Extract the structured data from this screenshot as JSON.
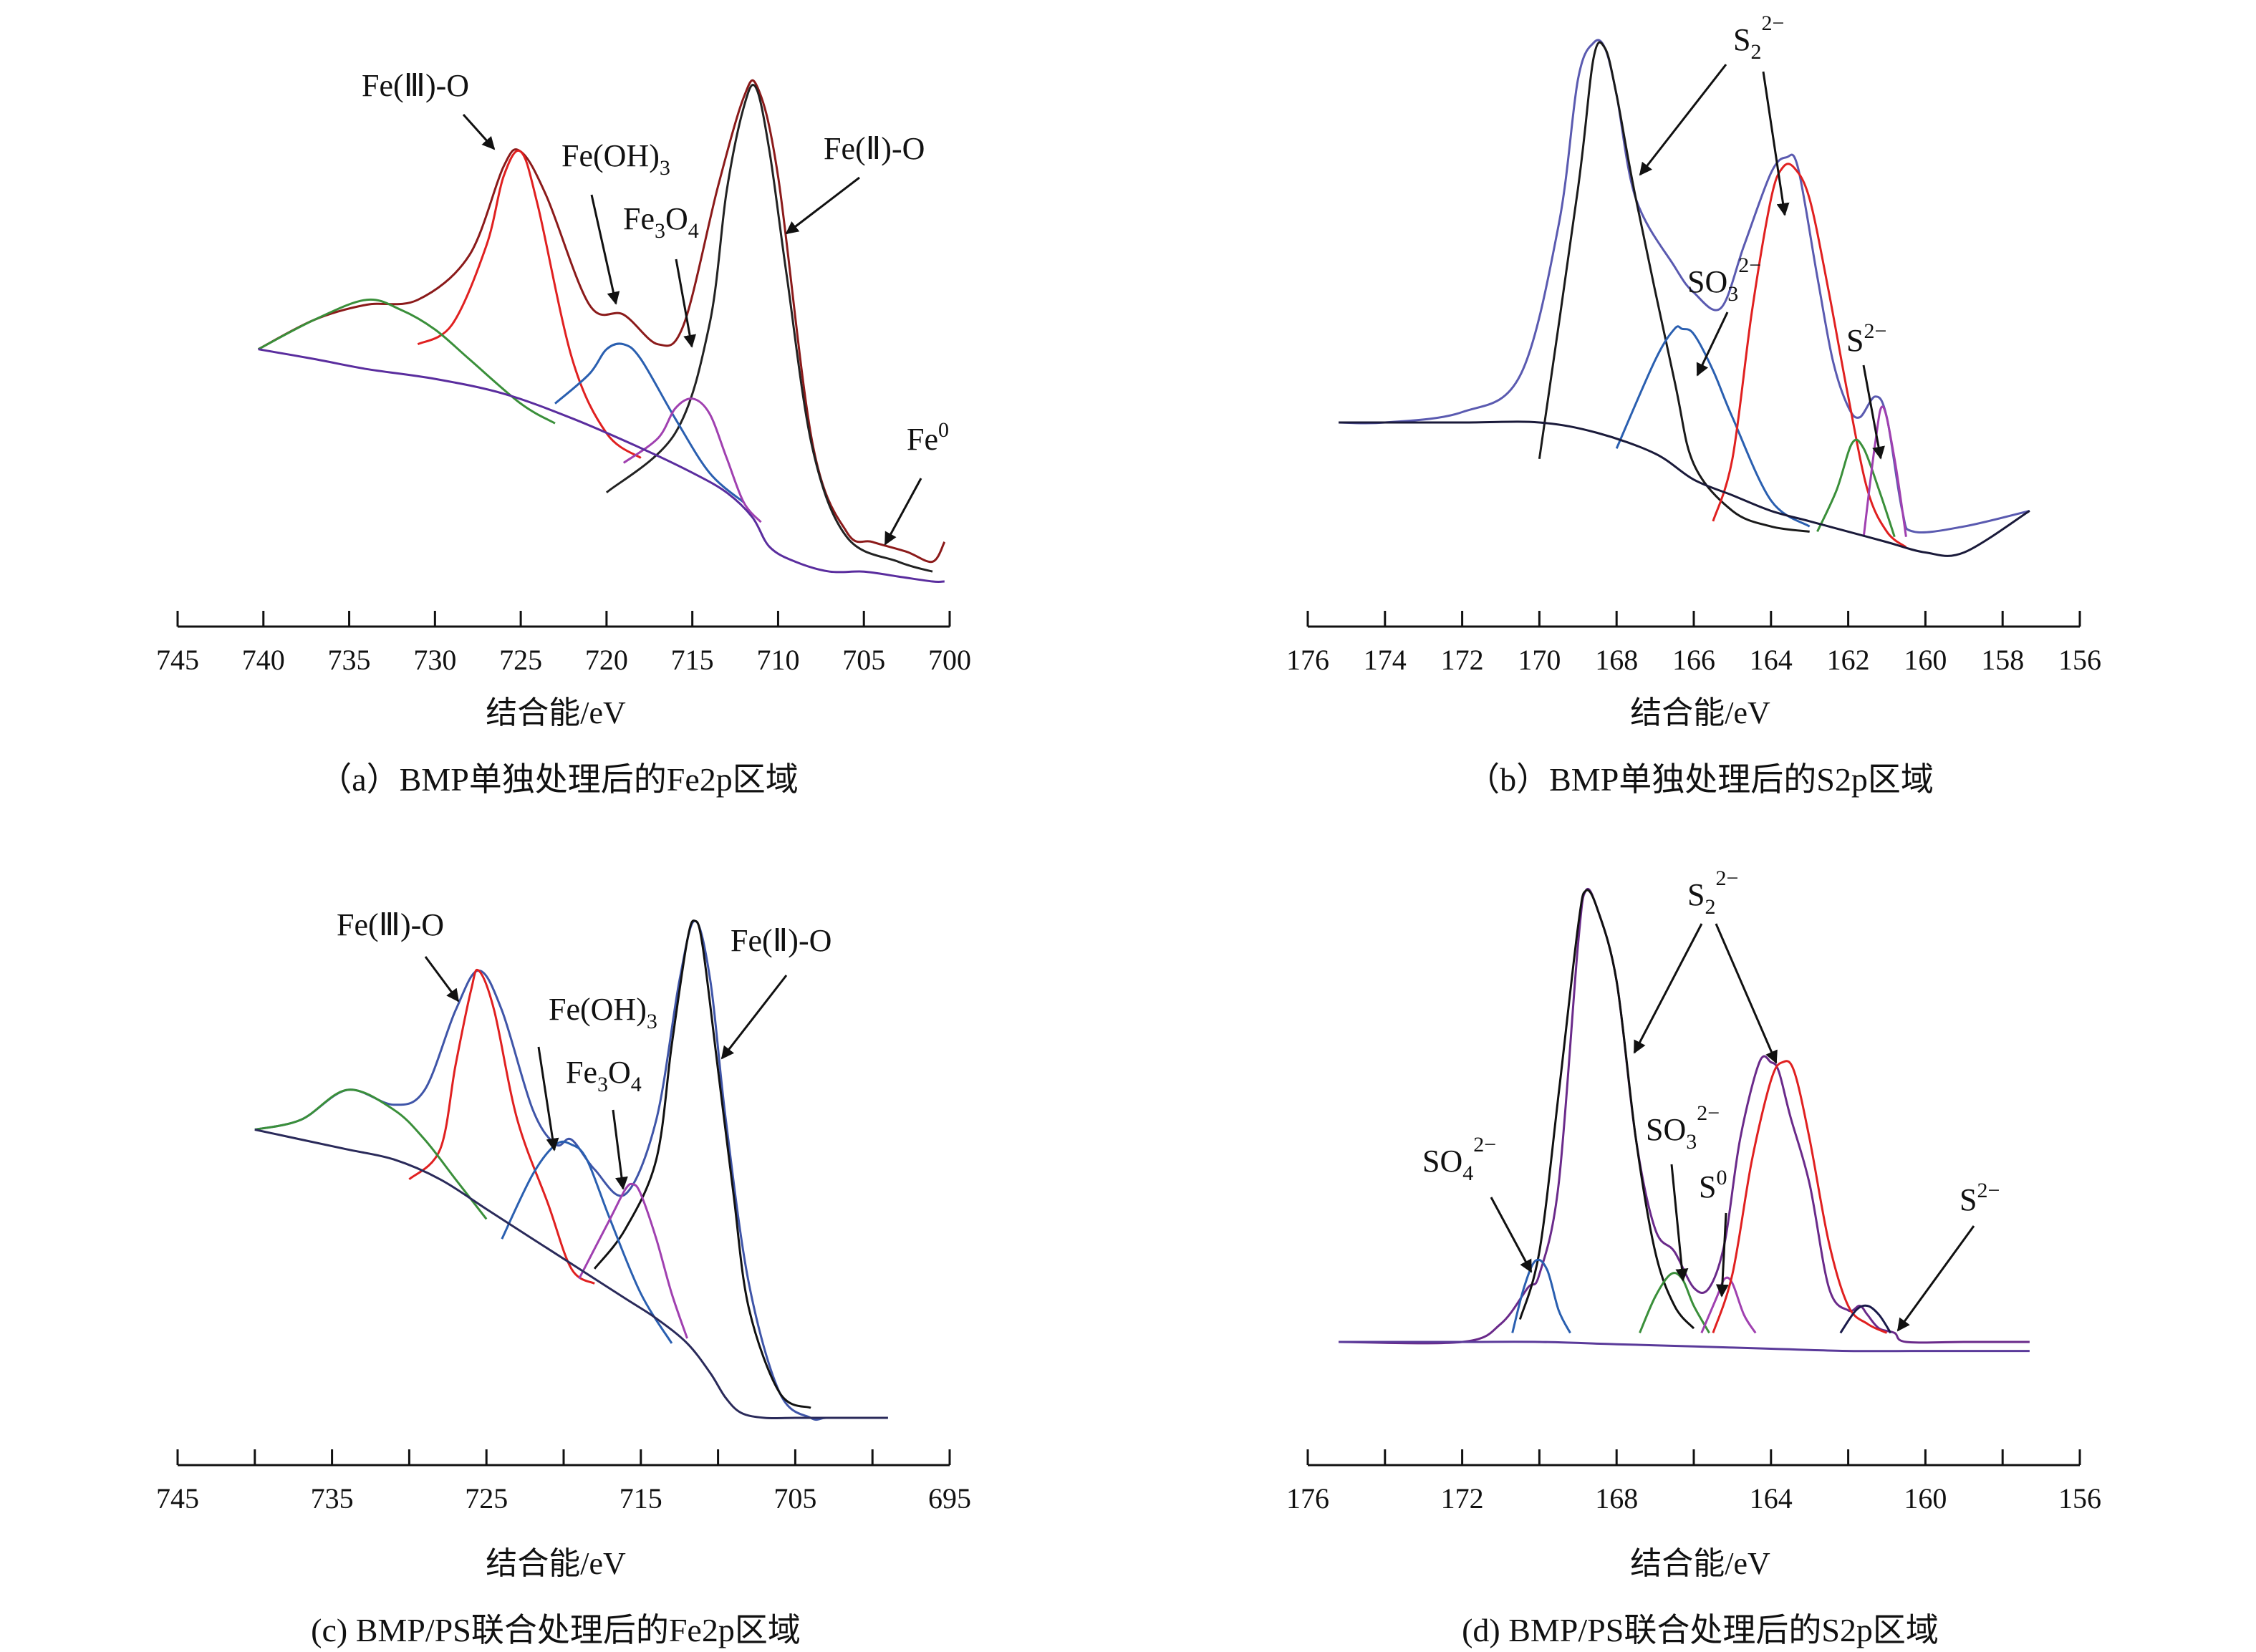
{
  "chart_data": [
    {
      "id": "a",
      "type": "line",
      "caption": "（a）BMP单独处理后的Fe2p区域",
      "xlabel": "结合能/eV",
      "ticks": [
        745,
        740,
        735,
        730,
        725,
        720,
        715,
        710,
        705,
        700
      ],
      "xlim": [
        745,
        700
      ],
      "series": [
        {
          "color": "#8b1a1a",
          "x": [
            740.3,
            737,
            734,
            731,
            728,
            726,
            725,
            723.5,
            721,
            719,
            717,
            715.5,
            713.5,
            712,
            711.2,
            710,
            708,
            706,
            704.5,
            702.5,
            701,
            700.3
          ],
          "y": [
            0.47,
            0.53,
            0.56,
            0.57,
            0.66,
            0.84,
            0.87,
            0.78,
            0.56,
            0.54,
            0.48,
            0.52,
            0.8,
            0.98,
            1.0,
            0.82,
            0.28,
            0.1,
            0.08,
            0.06,
            0.04,
            0.08
          ]
        },
        {
          "color": "#222222",
          "x": [
            720,
            716,
            714,
            713,
            712,
            711.3,
            710.5,
            709.5,
            708,
            706,
            703,
            701
          ],
          "y": [
            0.18,
            0.3,
            0.52,
            0.79,
            0.96,
            1.0,
            0.87,
            0.62,
            0.27,
            0.09,
            0.04,
            0.02
          ]
        },
        {
          "color": "#e02020",
          "x": [
            731,
            729,
            727,
            726,
            725,
            724,
            722,
            720,
            718
          ],
          "y": [
            0.48,
            0.52,
            0.68,
            0.82,
            0.87,
            0.76,
            0.45,
            0.3,
            0.25
          ]
        },
        {
          "color": "#2a5fb0",
          "x": [
            723,
            721,
            720,
            719,
            718,
            716,
            714,
            712
          ],
          "y": [
            0.36,
            0.42,
            0.47,
            0.48,
            0.45,
            0.33,
            0.22,
            0.16
          ]
        },
        {
          "color": "#a040b0",
          "x": [
            719,
            717,
            716,
            715,
            714,
            713,
            712,
            711
          ],
          "y": [
            0.24,
            0.29,
            0.35,
            0.37,
            0.34,
            0.25,
            0.16,
            0.12
          ]
        },
        {
          "color": "#3a8f3a",
          "x": [
            740.3,
            737,
            734,
            732,
            730,
            728,
            725,
            723
          ],
          "y": [
            0.47,
            0.53,
            0.57,
            0.55,
            0.51,
            0.45,
            0.36,
            0.32
          ]
        },
        {
          "color": "#5a2d9e",
          "x": [
            740.3,
            737,
            734,
            730,
            726,
            722,
            718,
            715,
            713,
            711.5,
            710.5,
            709,
            707,
            705,
            703,
            701,
            700.3
          ],
          "y": [
            0.47,
            0.45,
            0.43,
            0.41,
            0.38,
            0.33,
            0.27,
            0.22,
            0.18,
            0.13,
            0.07,
            0.04,
            0.02,
            0.02,
            0.01,
            0.0,
            0.0
          ]
        }
      ],
      "annotations": [
        {
          "text": "Fe(Ⅲ)-O",
          "sub": "",
          "tail": ""
        },
        {
          "text": "Fe(OH)",
          "sub": "3",
          "tail": ""
        },
        {
          "text": "Fe",
          "sub": "3",
          "tail": "O",
          "sub2": "4"
        },
        {
          "text": "Fe(Ⅱ)-O",
          "sub": "",
          "tail": ""
        },
        {
          "text": "Fe",
          "sup": "0"
        }
      ]
    },
    {
      "id": "b",
      "type": "line",
      "caption": "（b）BMP单独处理后的S2p区域",
      "xlabel": "结合能/eV",
      "ticks": [
        176,
        174,
        172,
        170,
        168,
        166,
        164,
        162,
        160,
        158,
        156
      ],
      "xlim": [
        176,
        156
      ],
      "series": [
        {
          "color": "#5a5ab0",
          "x": [
            175.2,
            174,
            172,
            170.5,
            169.5,
            169,
            168.6,
            168.3,
            168,
            167.5,
            166.5,
            166,
            165.3,
            164.7,
            164,
            163.6,
            163.3,
            162.8,
            162.4,
            162,
            161.7,
            161.3,
            161,
            160.6,
            160.3,
            159,
            157.3
          ],
          "y": [
            0.27,
            0.27,
            0.29,
            0.36,
            0.65,
            0.93,
            1.0,
            0.99,
            0.9,
            0.7,
            0.57,
            0.52,
            0.49,
            0.61,
            0.75,
            0.78,
            0.76,
            0.55,
            0.39,
            0.3,
            0.28,
            0.32,
            0.28,
            0.1,
            0.06,
            0.07,
            0.1
          ]
        },
        {
          "color": "#1a1a1a",
          "x": [
            170,
            169,
            168.6,
            168.3,
            168,
            167.5,
            166.5,
            166,
            165,
            164,
            163
          ],
          "y": [
            0.2,
            0.72,
            0.97,
            0.99,
            0.9,
            0.7,
            0.35,
            0.19,
            0.1,
            0.07,
            0.06
          ]
        },
        {
          "color": "#2a5fb0",
          "x": [
            168,
            167,
            166.5,
            166.3,
            166,
            165.5,
            165,
            164,
            163
          ],
          "y": [
            0.22,
            0.39,
            0.45,
            0.45,
            0.44,
            0.37,
            0.28,
            0.12,
            0.07
          ]
        },
        {
          "color": "#e02020",
          "x": [
            165.5,
            165,
            164.5,
            164,
            163.7,
            163.4,
            163,
            162.5,
            162,
            161.5,
            161,
            160.5
          ],
          "y": [
            0.08,
            0.2,
            0.48,
            0.7,
            0.76,
            0.76,
            0.7,
            0.52,
            0.32,
            0.14,
            0.06,
            0.03
          ]
        },
        {
          "color": "#3a8f3a",
          "x": [
            162.8,
            162.3,
            161.9,
            161.6,
            161.2,
            160.8
          ],
          "y": [
            0.06,
            0.14,
            0.23,
            0.22,
            0.14,
            0.05
          ]
        },
        {
          "color": "#a040b0",
          "x": [
            161.6,
            161.3,
            161.1,
            160.8,
            160.5
          ],
          "y": [
            0.05,
            0.23,
            0.3,
            0.2,
            0.05
          ]
        },
        {
          "color": "#1a1a3a",
          "x": [
            175.2,
            172,
            170,
            168.5,
            167,
            166,
            165,
            164,
            163,
            162,
            161,
            160,
            159,
            157.3
          ],
          "y": [
            0.27,
            0.27,
            0.27,
            0.25,
            0.21,
            0.16,
            0.13,
            0.1,
            0.08,
            0.06,
            0.04,
            0.02,
            0.02,
            0.1
          ]
        }
      ],
      "annotations": [
        {
          "text": "S",
          "sub": "2",
          "sup": "2−"
        },
        {
          "text": "SO",
          "sub": "3",
          "sup": "2−"
        },
        {
          "text": "S",
          "sup": "2−"
        }
      ]
    },
    {
      "id": "c",
      "type": "line",
      "caption": "(c) BMP/PS联合处理后的Fe2p区域",
      "xlabel": "结合能/eV",
      "ticks": [
        745,
        735,
        725,
        715,
        705,
        695
      ],
      "minor_ticks": [
        740,
        730,
        720,
        710,
        700
      ],
      "xlim": [
        745,
        695
      ],
      "series": [
        {
          "color": "#3f55a8",
          "x": [
            740,
            737,
            734,
            731,
            729,
            727,
            725.5,
            724,
            722,
            720.5,
            719.5,
            718,
            716,
            714,
            712.5,
            711.5,
            710.5,
            709.5,
            708,
            706,
            704,
            703,
            701,
            699
          ],
          "y": [
            0.58,
            0.6,
            0.66,
            0.63,
            0.66,
            0.82,
            0.9,
            0.82,
            0.62,
            0.55,
            0.56,
            0.5,
            0.45,
            0.6,
            0.88,
            1.0,
            0.88,
            0.6,
            0.27,
            0.05,
            0.0,
            0.0,
            0.0,
            0.0
          ]
        },
        {
          "color": "#111111",
          "x": [
            718,
            716,
            714,
            713,
            712,
            711.5,
            711,
            710,
            709,
            708,
            706,
            704
          ],
          "y": [
            0.3,
            0.38,
            0.52,
            0.75,
            0.96,
            1.0,
            0.95,
            0.7,
            0.45,
            0.22,
            0.05,
            0.02
          ]
        },
        {
          "color": "#e02020",
          "x": [
            730,
            728,
            727,
            726,
            725.5,
            724.5,
            723,
            721,
            719.5,
            718
          ],
          "y": [
            0.48,
            0.54,
            0.71,
            0.86,
            0.9,
            0.82,
            0.6,
            0.43,
            0.3,
            0.27
          ]
        },
        {
          "color": "#2a5fb0",
          "x": [
            724,
            722,
            720.5,
            719.5,
            718.5,
            717,
            715,
            713
          ],
          "y": [
            0.36,
            0.49,
            0.55,
            0.55,
            0.52,
            0.4,
            0.25,
            0.15
          ]
        },
        {
          "color": "#a040b0",
          "x": [
            719,
            717,
            716,
            715.5,
            715,
            714,
            713,
            712
          ],
          "y": [
            0.28,
            0.4,
            0.46,
            0.47,
            0.45,
            0.36,
            0.25,
            0.16
          ]
        },
        {
          "color": "#3a8f3a",
          "x": [
            740,
            737,
            734,
            731,
            729,
            727,
            725
          ],
          "y": [
            0.58,
            0.6,
            0.66,
            0.62,
            0.56,
            0.48,
            0.4
          ]
        },
        {
          "color": "#2a2a5a",
          "x": [
            740,
            737,
            734,
            731,
            728,
            725,
            722,
            719,
            716,
            714,
            712,
            710.5,
            709.5,
            708.5,
            707,
            705,
            703,
            701,
            699
          ],
          "y": [
            0.58,
            0.56,
            0.54,
            0.52,
            0.48,
            0.42,
            0.36,
            0.3,
            0.24,
            0.2,
            0.15,
            0.09,
            0.04,
            0.01,
            0.0,
            0.0,
            0.0,
            0.0,
            0.0
          ]
        }
      ],
      "annotations": [
        {
          "text": "Fe(Ⅲ)-O"
        },
        {
          "text": "Fe(OH)",
          "sub": "3"
        },
        {
          "text": "Fe",
          "sub": "3",
          "tail": "O",
          "sub2": "4"
        },
        {
          "text": "Fe(Ⅱ)-O"
        }
      ]
    },
    {
      "id": "d",
      "type": "line",
      "caption": "(d) BMP/PS联合处理后的S2p区域",
      "xlabel": "结合能/eV",
      "ticks": [
        176,
        172,
        168,
        164,
        160,
        156
      ],
      "minor_ticks": [
        174,
        170,
        166,
        162,
        158
      ],
      "xlim": [
        176,
        156
      ],
      "series": [
        {
          "color": "#6a2a8a",
          "x": [
            175.2,
            172,
            171,
            170.3,
            170,
            169.5,
            169,
            168.8,
            168.5,
            168,
            167.5,
            167,
            166.5,
            166,
            165.6,
            165.2,
            164.8,
            164.3,
            164,
            163.8,
            163.5,
            163,
            162.5,
            162,
            161.7,
            161.5,
            161.2,
            160.8,
            160.5,
            159,
            157.3
          ],
          "y": [
            0.0,
            0.0,
            0.04,
            0.12,
            0.15,
            0.35,
            0.88,
            1.0,
            0.96,
            0.8,
            0.45,
            0.25,
            0.2,
            0.12,
            0.12,
            0.22,
            0.45,
            0.62,
            0.62,
            0.6,
            0.5,
            0.35,
            0.12,
            0.07,
            0.08,
            0.06,
            0.03,
            0.02,
            0.0,
            0.0,
            0.0
          ]
        },
        {
          "color": "#111111",
          "x": [
            170.5,
            170,
            169.5,
            169,
            168.8,
            168.5,
            168,
            167.5,
            167,
            166.5,
            166
          ],
          "y": [
            0.05,
            0.2,
            0.55,
            0.92,
            1.0,
            0.96,
            0.8,
            0.45,
            0.2,
            0.08,
            0.03
          ]
        },
        {
          "color": "#2a5fb0",
          "x": [
            170.7,
            170.4,
            170.1,
            169.8,
            169.5,
            169.2
          ],
          "y": [
            0.02,
            0.12,
            0.18,
            0.16,
            0.07,
            0.02
          ]
        },
        {
          "color": "#3a8f3a",
          "x": [
            167.4,
            167,
            166.6,
            166.3,
            166,
            165.6
          ],
          "y": [
            0.02,
            0.1,
            0.15,
            0.14,
            0.08,
            0.02
          ]
        },
        {
          "color": "#a040b0",
          "x": [
            165.8,
            165.4,
            165.2,
            165,
            164.7,
            164.4
          ],
          "y": [
            0.02,
            0.1,
            0.14,
            0.13,
            0.06,
            0.02
          ]
        },
        {
          "color": "#e02020",
          "x": [
            165.5,
            165,
            164.5,
            164,
            163.7,
            163.4,
            163,
            162.5,
            162,
            161.5,
            161
          ],
          "y": [
            0.02,
            0.15,
            0.4,
            0.58,
            0.62,
            0.6,
            0.45,
            0.22,
            0.08,
            0.04,
            0.02
          ]
        },
        {
          "color": "#1a1a4a",
          "x": [
            162.2,
            161.8,
            161.5,
            161.2,
            160.9
          ],
          "y": [
            0.02,
            0.07,
            0.08,
            0.06,
            0.02
          ]
        },
        {
          "color": "#5a3a9a",
          "x": [
            175.2,
            172,
            170,
            168,
            166,
            164,
            162,
            160,
            157.3
          ],
          "y": [
            0.0,
            0.0,
            0.0,
            -0.005,
            -0.01,
            -0.015,
            -0.02,
            -0.02,
            -0.02
          ]
        }
      ],
      "annotations": [
        {
          "text": "S",
          "sub": "2",
          "sup": "2−"
        },
        {
          "text": "SO",
          "sub": "4",
          "sup": "2−"
        },
        {
          "text": "SO",
          "sub": "3",
          "sup": "2−"
        },
        {
          "text": "S",
          "sup": "0"
        },
        {
          "text": "S",
          "sup": "2−"
        }
      ]
    }
  ]
}
